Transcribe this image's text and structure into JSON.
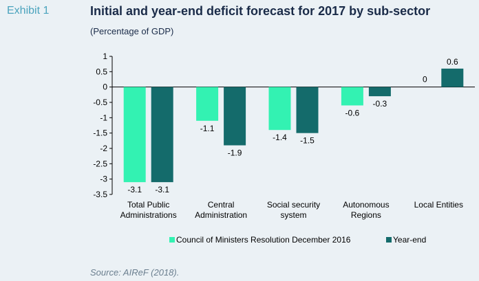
{
  "header": {
    "exhibit": "Exhibit 1",
    "title": "Initial and year-end deficit forecast for 2017 by sub-sector",
    "subtitle": "(Percentage of GDP)"
  },
  "source": "Source: AIReF (2018).",
  "colors": {
    "background": "#ebf1f5",
    "series1": "#33f2b2",
    "series2": "#146b6b"
  },
  "chart_data": {
    "type": "bar",
    "categories": [
      [
        "Total Public",
        "Administrations"
      ],
      [
        "Central",
        "Administration"
      ],
      [
        "Social security",
        "system"
      ],
      [
        "Autonomous",
        "Regions"
      ],
      [
        "Local Entities"
      ]
    ],
    "series": [
      {
        "name": "Council of Ministers Resolution December 2016",
        "values": [
          -3.1,
          -1.1,
          -1.4,
          -0.6,
          0
        ],
        "labels": [
          "-3.1",
          "-1.1",
          "-1.4",
          "-0.6",
          "0"
        ]
      },
      {
        "name": "Year-end",
        "values": [
          -3.1,
          -1.9,
          -1.5,
          -0.3,
          0.6
        ],
        "labels": [
          "-3.1",
          "-1.9",
          "-1.5",
          "-0.3",
          "0.6"
        ]
      }
    ],
    "yticks": [
      "1",
      "0.5",
      "0",
      "-0.5",
      "-1",
      "-1.5",
      "-2",
      "-2.5",
      "-3",
      "-3.5"
    ],
    "ylim": [
      -3.5,
      1
    ],
    "legend": "bottom",
    "grid": false
  }
}
